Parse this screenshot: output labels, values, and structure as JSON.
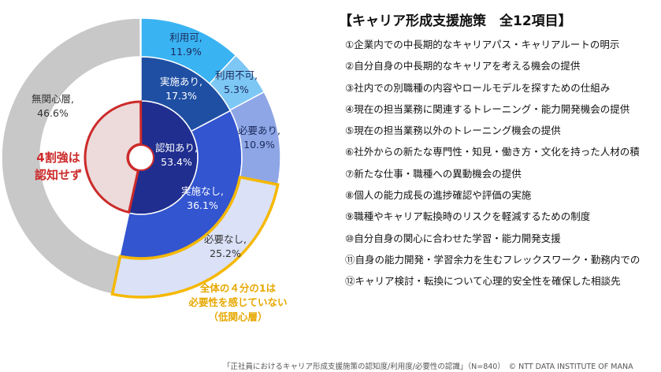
{
  "chart_data": {
    "type": "pie",
    "rings": [
      {
        "level": "inner",
        "segments": [
          {
            "label": "認知あり,",
            "value": 53.4,
            "display": "53.4%",
            "color": "#1f2e8f"
          },
          {
            "label": "",
            "value": 46.6,
            "display": "",
            "color": "#eddada"
          }
        ]
      },
      {
        "level": "middle",
        "segments": [
          {
            "label": "実施あり,",
            "value": 17.3,
            "display": "17.3%",
            "color": "#1f4fa3"
          },
          {
            "label": "実施なし,",
            "value": 36.1,
            "display": "36.1%",
            "color": "#3355d0"
          }
        ]
      },
      {
        "level": "outer",
        "segments": [
          {
            "label": "利用可,",
            "value": 11.9,
            "display": "11.9%",
            "color": "#3ab3f2"
          },
          {
            "label": "利用不可,",
            "value": 5.3,
            "display": "5.3%",
            "color": "#7dc7f5"
          },
          {
            "label": "必要あり,",
            "value": 10.9,
            "display": "10.9%",
            "color": "#8ea6e6"
          },
          {
            "label": "必要なし,",
            "value": 25.2,
            "display": "25.2%",
            "color": "#dbe1f7"
          },
          {
            "label": "無関心層,",
            "value": 46.6,
            "display": "46.6%",
            "color": "#c8c8c8"
          }
        ]
      }
    ],
    "annotations": {
      "red_callout": [
        "4割強は",
        "認知せず"
      ],
      "yellow_callout": [
        "全体の４分の1は",
        "必要性を感じていない",
        "（低関心層）"
      ]
    },
    "colors": {
      "highlight_red": "#cc2a2a",
      "highlight_yellow": "#f5b800"
    }
  },
  "list": {
    "title": "【キャリア形成支援施策　全12項目】",
    "items": [
      "①企業内での中長期的なキャリアパス・キャリアルートの明示",
      "②自分自身の中長期的なキャリアを考える機会の提供",
      "③社内での別職種の内容やロールモデルを探すための仕組み",
      "④現在の担当業務に関連するトレーニング・能力開発機会の提供",
      "⑤現在の担当業務以外のトレーニング機会の提供",
      "⑥社外からの新たな専門性・知見・働き方・文化を持った人材の積",
      "⑦新たな仕事・職種への異動機会の提供",
      "⑧個人の能力成長の進捗確認や評価の実施",
      "⑨職種やキャリア転換時のリスクを軽減するための制度",
      "⑩自分自身の関心に合わせた学習・能力開発支援",
      "⑪自身の能力開発・学習余力を生むフレックスワーク・勤務内での",
      "⑫キャリア検討・転換について心理的安全性を確保した相談先"
    ]
  },
  "footer": "「正社員におけるキャリア形成支援施策の認知度/利用度/必要性の認識」（N=840）　© NTT DATA INSTITUTE OF MANA"
}
